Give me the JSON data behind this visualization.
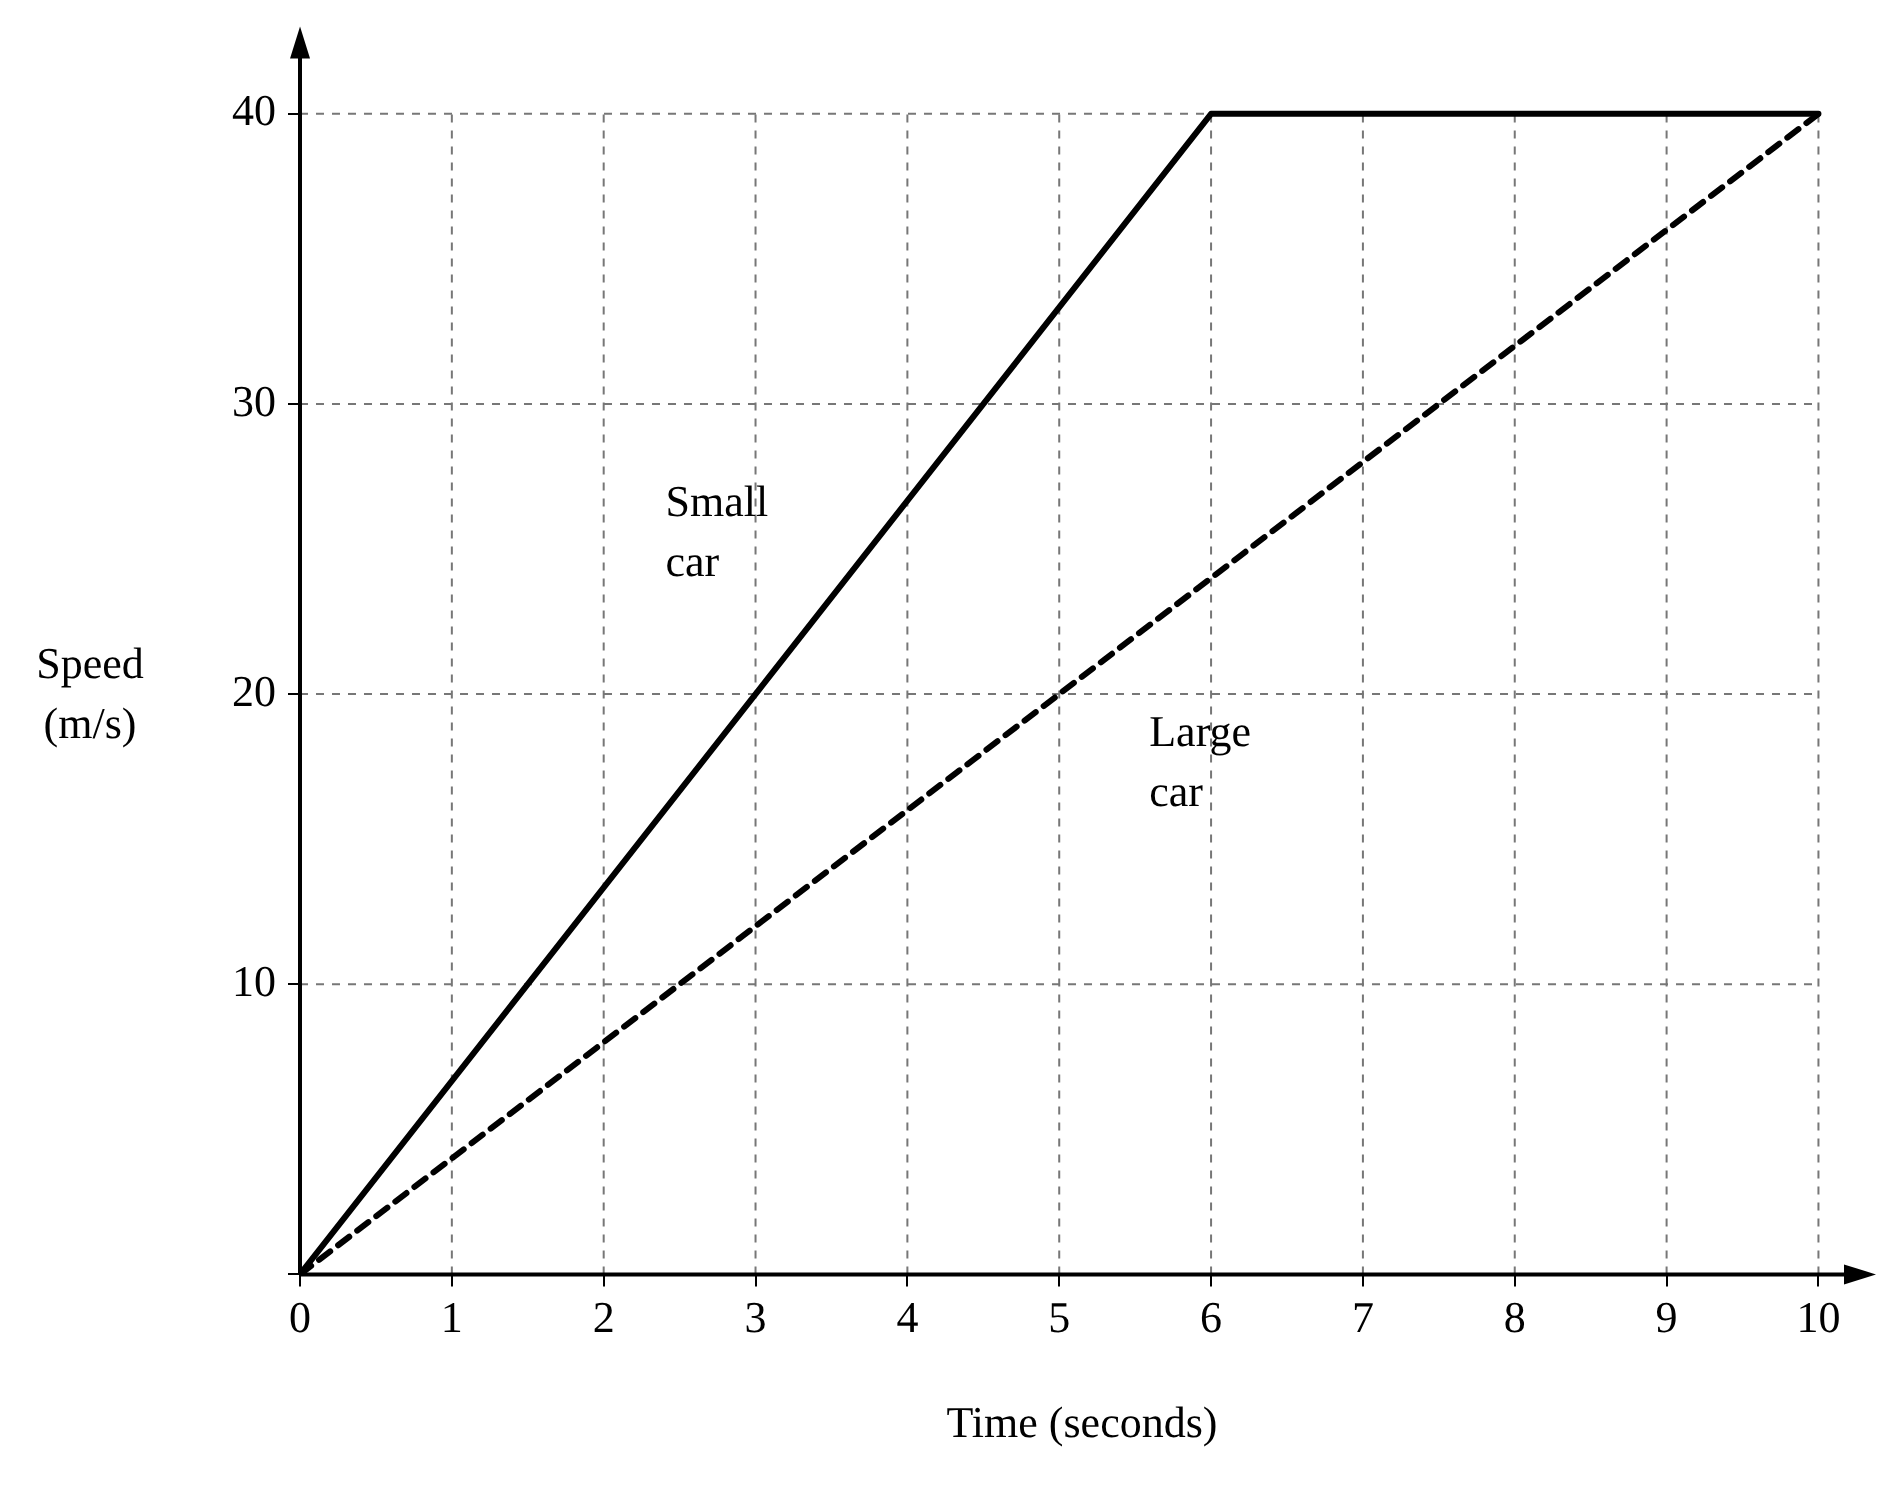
{
  "chart_data": {
    "type": "line",
    "xlabel": "Time (seconds)",
    "ylabel": "Speed (m/s)",
    "xlim": [
      0,
      10.3
    ],
    "ylim": [
      0,
      42.6
    ],
    "xticks": [
      0,
      1,
      2,
      3,
      4,
      5,
      6,
      7,
      8,
      9,
      10
    ],
    "yticks": [
      {
        "value": 0,
        "label": null
      },
      10,
      20,
      30,
      40
    ],
    "grid": true,
    "legend": false,
    "marker": "none",
    "series": [
      {
        "name": "Small car",
        "color": "#000000",
        "x": [
          0,
          6,
          10
        ],
        "values": [
          0,
          40,
          40
        ],
        "line_style": "solid"
      },
      {
        "name": "Large car",
        "color": "#000000",
        "x": [
          0,
          10
        ],
        "values": [
          0,
          40
        ],
        "line_style": "dashed"
      }
    ]
  }
}
